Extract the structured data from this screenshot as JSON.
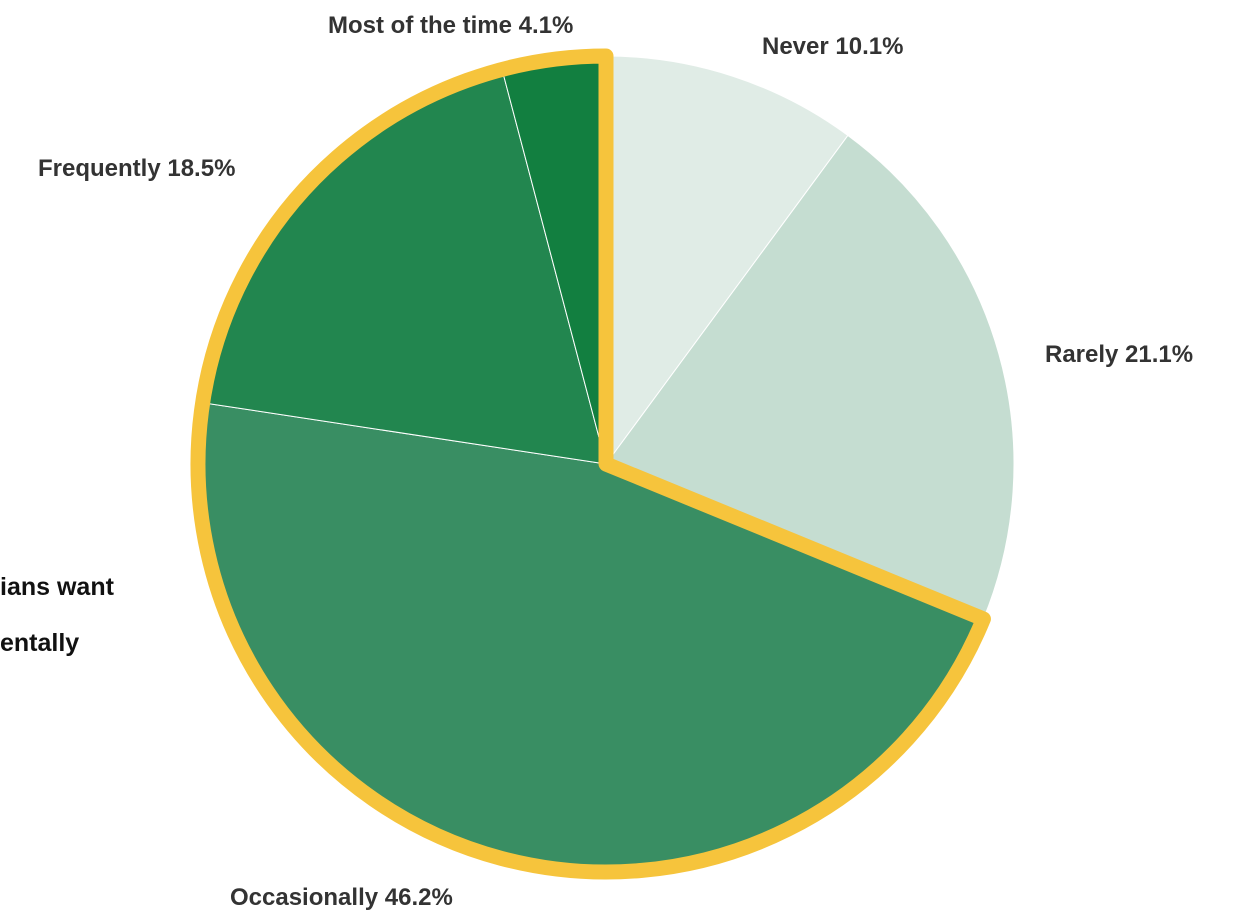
{
  "chart_data": {
    "type": "pie",
    "start_angle_deg": 0,
    "direction": "clockwise",
    "slices": [
      {
        "label": "Never",
        "value": 10.1,
        "display": "Never  10.1%",
        "color": "#e0ece6"
      },
      {
        "label": "Rarely",
        "value": 21.1,
        "display": "Rarely   21.1%",
        "color": "#c5ddd1"
      },
      {
        "label": "Occasionally",
        "value": 46.2,
        "display": "Occasionally  46.2%",
        "color": "#398e63"
      },
      {
        "label": "Frequently",
        "value": 18.5,
        "display": "Frequently   18.5%",
        "color": "#22864f"
      },
      {
        "label": "Most of the time",
        "value": 4.1,
        "display": "Most of the time 4.1%",
        "color": "#127f40"
      }
    ],
    "highlight": {
      "slices": [
        "Occasionally",
        "Frequently",
        "Most of the time"
      ],
      "color": "#f6c43c"
    },
    "callout_lines": [
      "ians want",
      "entally"
    ]
  }
}
